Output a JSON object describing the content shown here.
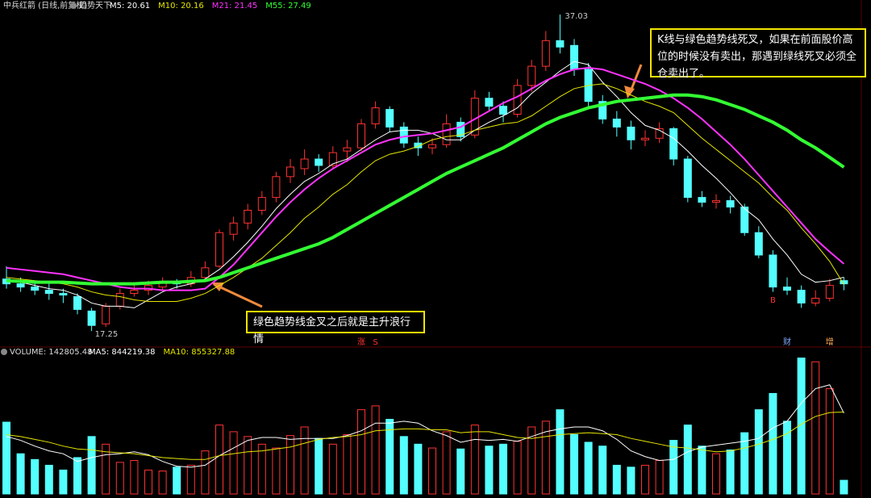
{
  "chart_data": {
    "type": "candlestick",
    "title": "中兵红箭 (日线,前复权)",
    "indicator": "趋势天下",
    "ylim": [
      16.5,
      37.94
    ],
    "up_color": "#ff3232",
    "down_color": "#54ffff",
    "ohlc": [
      [
        20.5,
        21.3,
        19.9,
        20.2
      ],
      [
        20.2,
        20.6,
        19.7,
        20.0
      ],
      [
        20.0,
        20.3,
        19.5,
        19.8
      ],
      [
        19.8,
        20.2,
        19.2,
        19.6
      ],
      [
        19.6,
        19.9,
        19.0,
        19.5
      ],
      [
        19.4,
        19.6,
        18.3,
        18.6
      ],
      [
        18.5,
        18.7,
        17.25,
        17.6
      ],
      [
        17.7,
        19.0,
        17.5,
        18.8
      ],
      [
        18.8,
        19.9,
        18.6,
        19.6
      ],
      [
        19.6,
        20.2,
        19.4,
        19.8
      ],
      [
        19.8,
        20.4,
        19.5,
        20.1
      ],
      [
        20.0,
        20.6,
        19.8,
        20.3
      ],
      [
        20.3,
        20.5,
        19.9,
        20.2
      ],
      [
        20.2,
        21.0,
        20.0,
        20.6
      ],
      [
        20.6,
        21.6,
        20.4,
        21.2
      ],
      [
        21.3,
        23.6,
        21.2,
        23.4
      ],
      [
        23.3,
        24.4,
        22.9,
        24.0
      ],
      [
        24.0,
        25.2,
        23.6,
        24.8
      ],
      [
        24.8,
        26.0,
        24.5,
        25.6
      ],
      [
        25.6,
        27.2,
        25.3,
        26.9
      ],
      [
        26.9,
        28.0,
        26.5,
        27.5
      ],
      [
        27.4,
        28.6,
        27.0,
        28.0
      ],
      [
        28.0,
        28.3,
        27.2,
        27.6
      ],
      [
        27.6,
        28.8,
        27.4,
        28.4
      ],
      [
        28.5,
        29.2,
        27.8,
        28.7
      ],
      [
        28.7,
        30.5,
        28.5,
        30.2
      ],
      [
        30.2,
        31.6,
        29.9,
        31.2
      ],
      [
        31.1,
        31.3,
        29.7,
        30.0
      ],
      [
        30.0,
        30.3,
        28.7,
        29.0
      ],
      [
        29.0,
        29.4,
        28.2,
        28.7
      ],
      [
        28.7,
        29.3,
        28.3,
        28.9
      ],
      [
        28.9,
        30.8,
        28.7,
        30.2
      ],
      [
        30.3,
        30.6,
        29.1,
        29.4
      ],
      [
        29.5,
        32.3,
        29.3,
        31.8
      ],
      [
        31.8,
        32.2,
        31.0,
        31.3
      ],
      [
        31.3,
        31.6,
        30.3,
        30.8
      ],
      [
        30.8,
        33.0,
        30.6,
        32.6
      ],
      [
        32.6,
        34.2,
        32.2,
        33.8
      ],
      [
        33.8,
        36.0,
        33.5,
        35.4
      ],
      [
        35.4,
        37.03,
        34.6,
        35.0
      ],
      [
        35.1,
        35.5,
        33.2,
        33.6
      ],
      [
        33.6,
        34.0,
        31.3,
        31.6
      ],
      [
        31.6,
        32.0,
        30.2,
        30.5
      ],
      [
        30.5,
        31.0,
        29.4,
        30.0
      ],
      [
        30.0,
        30.4,
        28.6,
        29.2
      ],
      [
        29.2,
        29.8,
        28.8,
        29.3
      ],
      [
        29.3,
        30.3,
        29.0,
        29.9
      ],
      [
        29.9,
        30.0,
        27.6,
        28.0
      ],
      [
        28.0,
        28.2,
        25.3,
        25.6
      ],
      [
        25.6,
        26.0,
        25.0,
        25.3
      ],
      [
        25.3,
        25.8,
        24.9,
        25.4
      ],
      [
        25.4,
        25.7,
        24.6,
        25.0
      ],
      [
        25.0,
        25.2,
        23.2,
        23.4
      ],
      [
        23.4,
        23.8,
        21.8,
        22.0
      ],
      [
        22.0,
        22.3,
        19.7,
        20.0
      ],
      [
        20.0,
        20.6,
        19.5,
        19.8
      ],
      [
        19.8,
        20.1,
        18.7,
        19.0
      ],
      [
        19.0,
        19.8,
        18.8,
        19.3
      ],
      [
        19.3,
        20.5,
        19.1,
        20.1
      ],
      [
        20.4,
        20.6,
        19.8,
        20.2
      ]
    ],
    "series": [
      {
        "name": "M5: 20.61",
        "color": "#ffffff",
        "width": 1,
        "values": [
          20.4,
          20.3,
          20.1,
          19.9,
          19.8,
          19.5,
          19.0,
          18.8,
          18.8,
          18.7,
          19.2,
          19.7,
          20.0,
          20.2,
          20.5,
          21.1,
          21.9,
          22.8,
          23.8,
          24.9,
          25.8,
          26.6,
          27.1,
          27.7,
          28.0,
          28.6,
          29.2,
          29.7,
          29.8,
          29.8,
          29.6,
          29.2,
          29.2,
          29.8,
          30.3,
          30.7,
          31.2,
          32.1,
          32.8,
          33.5,
          34.1,
          33.9,
          32.8,
          31.9,
          30.9,
          30.1,
          29.8,
          29.3,
          28.5,
          27.6,
          26.8,
          25.9,
          24.9,
          24.2,
          23.0,
          22.0,
          20.8,
          20.3,
          20.4,
          20.61
        ]
      },
      {
        "name": "M10: 20.16",
        "color": "#e6e600",
        "width": 1,
        "values": [
          20.6,
          20.5,
          20.4,
          20.3,
          20.2,
          20.0,
          19.7,
          19.5,
          19.4,
          19.2,
          19.1,
          19.1,
          19.1,
          19.3,
          19.6,
          20.1,
          20.6,
          21.2,
          21.8,
          22.6,
          23.4,
          24.3,
          25.0,
          25.8,
          26.4,
          27.2,
          27.9,
          28.3,
          28.5,
          28.8,
          29.2,
          29.4,
          29.5,
          29.8,
          30.0,
          30.2,
          30.3,
          30.7,
          31.3,
          31.9,
          32.4,
          32.6,
          32.7,
          32.4,
          32.0,
          31.6,
          31.3,
          30.9,
          30.1,
          29.3,
          28.6,
          27.9,
          27.2,
          26.5,
          25.6,
          24.8,
          23.7,
          22.7,
          21.6,
          20.16
        ]
      },
      {
        "name": "M21: 21.45",
        "color": "#ff33ff",
        "width": 2,
        "values": [
          21.2,
          21.1,
          21.0,
          20.9,
          20.8,
          20.6,
          20.4,
          20.2,
          20.0,
          19.9,
          19.9,
          19.8,
          19.8,
          19.8,
          19.9,
          20.6,
          21.4,
          22.4,
          23.4,
          24.4,
          25.3,
          26.1,
          26.8,
          27.4,
          27.9,
          28.4,
          28.9,
          29.2,
          29.4,
          29.5,
          29.6,
          29.8,
          30.0,
          30.5,
          31.0,
          31.5,
          31.9,
          32.4,
          32.9,
          33.3,
          33.6,
          33.7,
          33.6,
          33.3,
          33.0,
          32.7,
          32.3,
          31.8,
          31.2,
          30.5,
          29.7,
          28.9,
          28.0,
          27.0,
          26.0,
          25.0,
          24.0,
          23.0,
          22.2,
          21.45
        ]
      },
      {
        "name": "M55: 27.49",
        "color": "#33ff33",
        "width": 4,
        "values": [
          20.4,
          20.35,
          20.3,
          20.3,
          20.3,
          20.25,
          20.2,
          20.2,
          20.2,
          20.2,
          20.25,
          20.3,
          20.3,
          20.35,
          20.4,
          20.6,
          20.9,
          21.2,
          21.5,
          21.8,
          22.1,
          22.4,
          22.7,
          23.1,
          23.6,
          24.1,
          24.6,
          25.1,
          25.6,
          26.1,
          26.6,
          27.1,
          27.5,
          27.9,
          28.3,
          28.7,
          29.2,
          29.7,
          30.2,
          30.6,
          30.9,
          31.2,
          31.4,
          31.6,
          31.7,
          31.8,
          31.9,
          32.0,
          32.0,
          31.9,
          31.7,
          31.4,
          31.1,
          30.7,
          30.3,
          29.8,
          29.2,
          28.7,
          28.1,
          27.49
        ]
      }
    ],
    "volume_title": "VOLUME: 142805.48",
    "vlim": [
      0,
      1450000
    ],
    "volume": [
      750000,
      420000,
      360000,
      300000,
      250000,
      380000,
      600000,
      520000,
      330000,
      350000,
      250000,
      240000,
      280000,
      300000,
      450000,
      720000,
      650000,
      600000,
      520000,
      480000,
      610000,
      700000,
      580000,
      520000,
      620000,
      880000,
      920000,
      780000,
      600000,
      520000,
      480000,
      650000,
      470000,
      720000,
      500000,
      520000,
      550000,
      700000,
      760000,
      880000,
      620000,
      540000,
      500000,
      300000,
      280000,
      300000,
      350000,
      560000,
      720000,
      500000,
      420000,
      460000,
      640000,
      880000,
      1050000,
      760000,
      1420000,
      1380000,
      1100000,
      142805.48
    ],
    "volume_series": [
      {
        "name": "MA5: 844219.38",
        "color": "#ffffff",
        "values": [
          600000,
          560000,
          500000,
          450000,
          420000,
          340000,
          380000,
          410000,
          420000,
          440000,
          410000,
          340000,
          290000,
          280000,
          300000,
          400000,
          480000,
          560000,
          590000,
          590000,
          570000,
          580000,
          580000,
          580000,
          610000,
          660000,
          740000,
          740000,
          760000,
          740000,
          660000,
          610000,
          540000,
          570000,
          560000,
          570000,
          550000,
          600000,
          650000,
          680000,
          700000,
          700000,
          660000,
          570000,
          450000,
          390000,
          350000,
          360000,
          440000,
          490000,
          510000,
          530000,
          550000,
          580000,
          690000,
          760000,
          950000,
          1100000,
          1140000,
          844219.38
        ]
      },
      {
        "name": "MA10: 855327.88",
        "color": "#e6e600",
        "values": [
          620000,
          600000,
          570000,
          540000,
          500000,
          470000,
          460000,
          440000,
          430000,
          420000,
          400000,
          380000,
          370000,
          360000,
          360000,
          400000,
          420000,
          440000,
          450000,
          470000,
          490000,
          530000,
          570000,
          590000,
          600000,
          620000,
          660000,
          670000,
          680000,
          680000,
          670000,
          670000,
          640000,
          650000,
          650000,
          620000,
          590000,
          580000,
          600000,
          620000,
          630000,
          640000,
          630000,
          620000,
          580000,
          550000,
          520000,
          490000,
          480000,
          460000,
          440000,
          450000,
          480000,
          520000,
          570000,
          630000,
          730000,
          810000,
          850000,
          855327.88
        ]
      }
    ],
    "markers": [
      {
        "text": "涨",
        "color": "#ff3232",
        "index": 25
      },
      {
        "text": "S",
        "color": "#ff3232",
        "index": 26
      },
      {
        "text": "B",
        "color": "#ff3232",
        "index": 54
      },
      {
        "text": "财",
        "color": "#7fa8ff",
        "index": 55
      },
      {
        "text": "增",
        "color": "#ffaa55",
        "index": 58
      }
    ],
    "annotations": [
      "绿色趋势线金叉之后就是主升浪行情",
      "K线与绿色趋势线死叉，如果在前面股价高位的时候没有卖出，那遇到绿线死叉必须全仓卖出了。"
    ]
  }
}
